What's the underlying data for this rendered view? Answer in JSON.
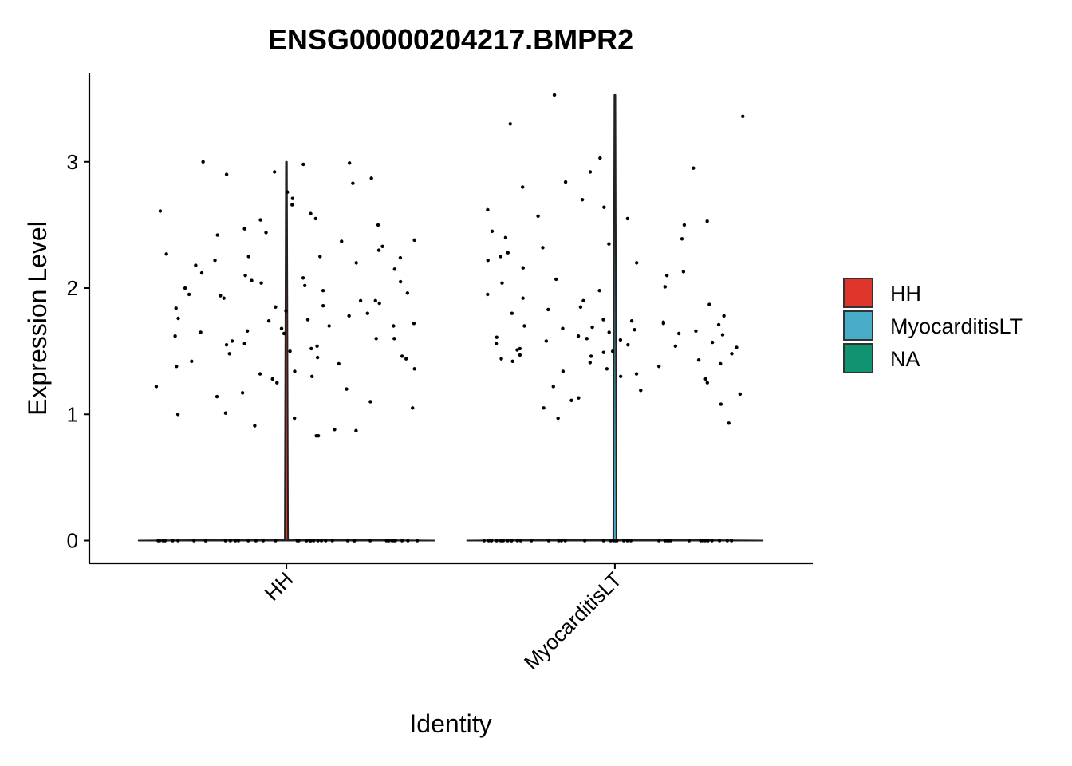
{
  "chart_data": {
    "type": "violin",
    "title": "ENSG00000204217.BMPR2",
    "x_label": "Identity",
    "y_label": "Expression Level",
    "categories": [
      "HH",
      "MyocarditisLT"
    ],
    "series": [
      {
        "name": "HH",
        "color": "#E0352B"
      },
      {
        "name": "MyocarditisLT",
        "color": "#46ACC8"
      },
      {
        "name": "NA",
        "color": "#0F9370"
      }
    ],
    "values": [
      [
        3.0,
        2.99,
        2.98,
        2.92,
        2.9,
        2.87,
        2.83,
        2.76,
        2.71,
        2.66,
        2.61,
        2.59,
        2.55,
        2.54,
        2.5,
        2.47,
        2.44,
        2.42,
        2.38,
        2.37,
        2.33,
        2.3,
        2.27,
        2.25,
        2.24,
        2.22,
        2.2,
        2.18,
        2.15,
        2.12,
        2.1,
        2.08,
        2.06,
        2.04,
        2.02,
        2.0,
        1.98,
        1.96,
        1.94,
        1.92,
        1.9,
        1.88,
        1.86,
        1.84,
        1.82,
        1.8,
        1.78,
        1.76,
        1.74,
        1.72,
        1.7,
        1.68,
        1.66,
        1.64,
        1.62,
        1.6,
        1.58,
        1.56,
        1.54,
        1.52,
        1.5,
        1.48,
        1.46,
        1.44,
        1.42,
        1.4,
        1.38,
        1.36,
        1.34,
        1.32,
        1.3,
        1.28,
        1.25,
        1.22,
        1.2,
        1.17,
        1.14,
        1.1,
        1.05,
        1.01,
        1.0,
        0.97,
        0.91,
        0.88,
        0.87,
        0.83,
        0.83,
        1.95,
        1.85,
        1.75,
        1.65,
        1.55,
        2.05,
        1.45,
        1.7,
        1.6,
        2.25,
        1.9,
        0,
        0,
        0,
        0,
        0,
        0,
        0,
        0,
        0,
        0,
        0,
        0,
        0,
        0,
        0,
        0,
        0,
        0,
        0,
        0,
        0,
        0,
        0,
        0,
        0,
        0,
        0,
        0,
        0,
        0,
        0,
        0,
        0,
        0,
        0,
        0,
        0,
        0,
        0,
        0
      ],
      [
        3.53,
        3.36,
        3.3,
        3.03,
        2.95,
        2.92,
        2.84,
        2.8,
        2.7,
        2.64,
        2.62,
        2.57,
        2.55,
        2.53,
        2.5,
        2.45,
        2.4,
        2.39,
        2.35,
        2.32,
        2.28,
        2.25,
        2.22,
        2.2,
        2.16,
        2.13,
        2.1,
        2.07,
        2.04,
        2.01,
        1.98,
        1.95,
        1.92,
        1.9,
        1.87,
        1.85,
        1.83,
        1.8,
        1.78,
        1.75,
        1.73,
        1.71,
        1.7,
        1.68,
        1.66,
        1.64,
        1.62,
        1.6,
        1.58,
        1.56,
        1.55,
        1.53,
        1.51,
        1.5,
        1.48,
        1.46,
        1.44,
        1.42,
        1.4,
        1.38,
        1.36,
        1.34,
        1.32,
        1.3,
        1.28,
        1.25,
        1.22,
        1.19,
        1.16,
        1.13,
        1.11,
        1.08,
        1.05,
        0.97,
        0.93,
        1.65,
        1.72,
        1.57,
        1.47,
        1.61,
        1.69,
        1.52,
        1.43,
        1.59,
        1.74,
        1.67,
        1.49,
        1.54,
        1.63,
        1.41,
        0,
        0,
        0,
        0,
        0,
        0,
        0,
        0,
        0,
        0,
        0,
        0,
        0,
        0,
        0,
        0,
        0,
        0,
        0,
        0,
        0,
        0,
        0,
        0,
        0,
        0,
        0,
        0,
        0,
        0,
        0,
        0,
        0,
        0,
        0,
        0,
        0,
        0,
        0,
        0
      ]
    ],
    "ylim": [
      -0.18,
      3.7
    ],
    "yticks": [
      0,
      1,
      2,
      3
    ]
  }
}
